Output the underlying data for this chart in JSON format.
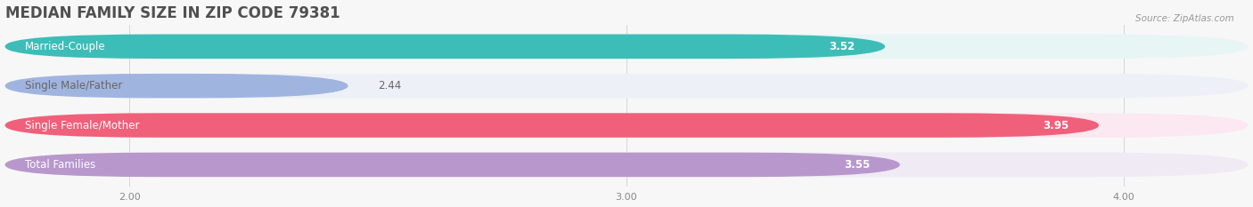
{
  "title": "MEDIAN FAMILY SIZE IN ZIP CODE 79381",
  "source": "Source: ZipAtlas.com",
  "categories": [
    "Married-Couple",
    "Single Male/Father",
    "Single Female/Mother",
    "Total Families"
  ],
  "values": [
    3.52,
    2.44,
    3.95,
    3.55
  ],
  "bar_colors": [
    "#3dbdb8",
    "#a0b4e0",
    "#f0607a",
    "#b898cc"
  ],
  "bar_bg_colors": [
    "#e8f5f5",
    "#eef0f8",
    "#fce8f0",
    "#f0eaf5"
  ],
  "xlim_min": 1.75,
  "xlim_max": 4.25,
  "xticks": [
    2.0,
    3.0,
    4.0
  ],
  "xtick_labels": [
    "2.00",
    "3.00",
    "4.00"
  ],
  "label_fontsize": 8.5,
  "value_fontsize": 8.5,
  "title_fontsize": 12,
  "bar_height": 0.62,
  "background_color": "#f7f7f7",
  "label_color_dark": "#666666",
  "value_label_outside_idx": 1
}
